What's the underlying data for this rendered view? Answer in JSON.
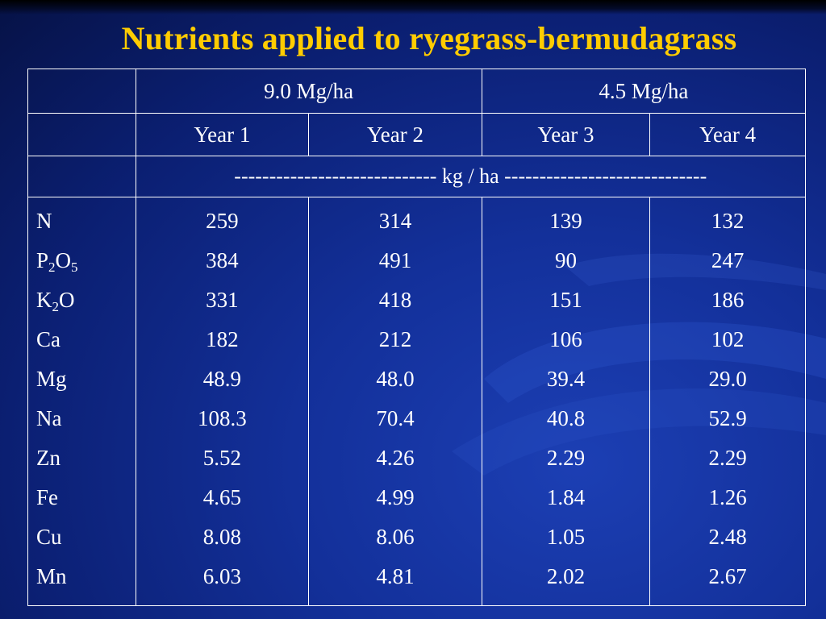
{
  "title": "Nutrients applied to ryegrass-bermudagrass",
  "table": {
    "rate_headers": [
      "9.0 Mg/ha",
      "4.5 Mg/ha"
    ],
    "year_headers": [
      "Year 1",
      "Year 2",
      "Year 3",
      "Year 4"
    ],
    "units_row": "----------------------------- kg / ha -----------------------------",
    "nutrients": [
      {
        "base": "N",
        "sub": "",
        "tail": ""
      },
      {
        "base": "P",
        "sub": "2",
        "tail": "O",
        "sub2": "5"
      },
      {
        "base": "K",
        "sub": "2",
        "tail": "O",
        "sub2": ""
      },
      {
        "base": "Ca",
        "sub": "",
        "tail": ""
      },
      {
        "base": "Mg",
        "sub": "",
        "tail": ""
      },
      {
        "base": "Na",
        "sub": "",
        "tail": ""
      },
      {
        "base": "Zn",
        "sub": "",
        "tail": ""
      },
      {
        "base": "Fe",
        "sub": "",
        "tail": ""
      },
      {
        "base": "Cu",
        "sub": "",
        "tail": ""
      },
      {
        "base": "Mn",
        "sub": "",
        "tail": ""
      }
    ],
    "year1": [
      "259",
      "384",
      "331",
      "182",
      "48.9",
      "108.3",
      "5.52",
      "4.65",
      "8.08",
      "6.03"
    ],
    "year2": [
      "314",
      "491",
      "418",
      "212",
      "48.0",
      "70.4",
      "4.26",
      "4.99",
      "8.06",
      "4.81"
    ],
    "year3": [
      "139",
      "90",
      "151",
      "106",
      "39.4",
      "40.8",
      "2.29",
      "1.84",
      "1.05",
      "2.02"
    ],
    "year4": [
      "132",
      "247",
      "186",
      "102",
      "29.0",
      "52.9",
      "2.29",
      "1.26",
      "2.48",
      "2.67"
    ]
  },
  "colors": {
    "title": "#ffcc00",
    "background": "#13309a",
    "text": "#ffffff"
  }
}
